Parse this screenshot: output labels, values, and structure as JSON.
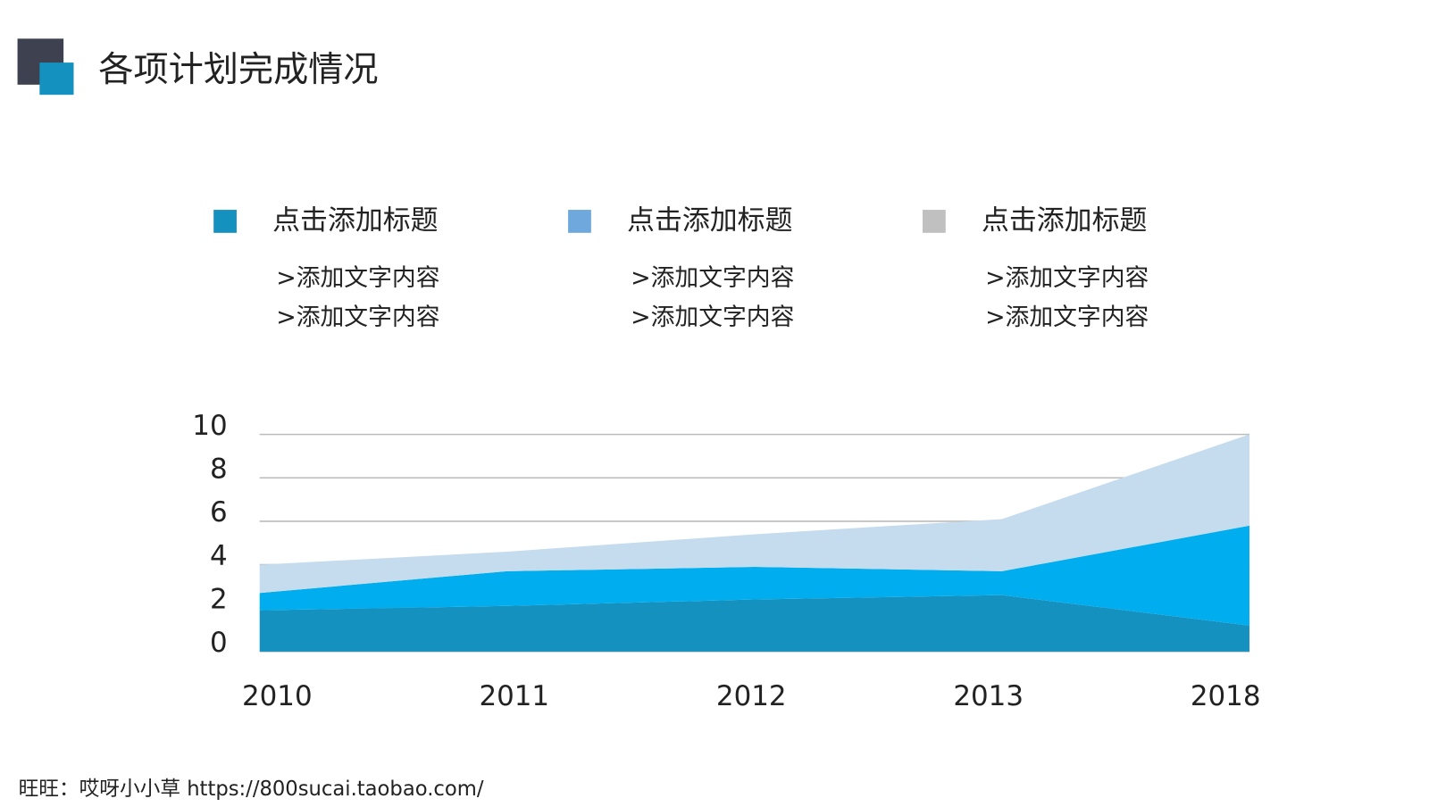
{
  "header": {
    "title": "各项计划完成情况"
  },
  "chart_data": {
    "type": "area",
    "stacked": true,
    "categories": [
      "2010",
      "2011",
      "2012",
      "2013",
      "2018"
    ],
    "series": [
      {
        "name": "点击添加标题",
        "color": "#1591c0",
        "marker_color": "#1591c0",
        "items": [
          ">添加文字内容",
          ">添加文字内容"
        ],
        "values": [
          1.9,
          2.1,
          2.4,
          2.6,
          1.2
        ]
      },
      {
        "name": "点击添加标题",
        "color": "#00aeef",
        "marker_color": "#6fa8dc",
        "items": [
          ">添加文字内容",
          ">添加文字内容"
        ],
        "values": [
          0.8,
          1.6,
          1.5,
          1.1,
          4.6
        ]
      },
      {
        "name": "点击添加标题",
        "color": "#c5dbee",
        "marker_color": "#c0c0c0",
        "items": [
          ">添加文字内容",
          ">添加文字内容"
        ],
        "values": [
          1.3,
          0.9,
          1.5,
          2.4,
          4.2
        ]
      }
    ],
    "ylim": [
      0,
      10
    ],
    "yticks": [
      0,
      2,
      4,
      6,
      8,
      10
    ],
    "grid": true
  },
  "footer": {
    "text": "旺旺：哎呀小小草 https://800sucai.taobao.com/"
  }
}
